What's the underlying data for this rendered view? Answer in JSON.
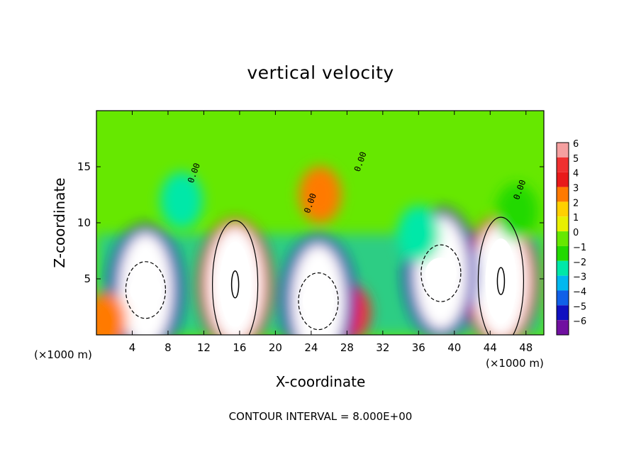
{
  "chart_data": {
    "type": "heatmap",
    "title": "vertical velocity",
    "xlabel": "X-coordinate",
    "ylabel": "Z-coordinate",
    "x_unit_note": "(×1000 m)",
    "xlim": [
      0,
      50
    ],
    "ylim": [
      0,
      20
    ],
    "x_ticks": [
      "4",
      "8",
      "12",
      "16",
      "20",
      "24",
      "28",
      "32",
      "36",
      "40",
      "44",
      "48"
    ],
    "y_ticks": [
      "5",
      "10",
      "15"
    ],
    "colorbar": {
      "labels": [
        "6",
        "5",
        "4",
        "3",
        "2",
        "1",
        "0",
        "−1",
        "−2",
        "−3",
        "−4",
        "−5",
        "−6"
      ],
      "values": [
        6,
        5,
        4,
        3,
        2,
        1,
        0,
        -1,
        -2,
        -3,
        -4,
        -5,
        -6
      ],
      "colors": [
        "#f5a0a0",
        "#f03030",
        "#e81a1a",
        "#ff7a00",
        "#ffd000",
        "#e8f000",
        "#66e800",
        "#22d900",
        "#00e8a8",
        "#00b8f0",
        "#1060e8",
        "#1010c0",
        "#7010a0"
      ]
    },
    "background_color": "#66e800",
    "cells": [
      {
        "x": 15.5,
        "z": 4.5,
        "v": 10
      },
      {
        "x": 45.2,
        "z": 4.8,
        "v": 9
      },
      {
        "x": 28.3,
        "z": 2,
        "v": 5
      },
      {
        "x": 25,
        "z": 12.5,
        "v": 2.5
      },
      {
        "x": 5.5,
        "z": 4,
        "v": -9
      },
      {
        "x": 38.5,
        "z": 5.5,
        "v": -9
      },
      {
        "x": 24.8,
        "z": 3,
        "v": -7
      },
      {
        "x": 1,
        "z": 1.3,
        "v": 3
      },
      {
        "x": 9.5,
        "z": 12,
        "v": -2.5
      },
      {
        "x": 36,
        "z": 9,
        "v": -2
      },
      {
        "x": 47,
        "z": 11,
        "v": -1.5
      }
    ],
    "contour_labels": [
      "0.00",
      "0.00",
      "0.00",
      "0.00"
    ],
    "contour_interval_text": "CONTOUR INTERVAL = 8.000E+00"
  }
}
